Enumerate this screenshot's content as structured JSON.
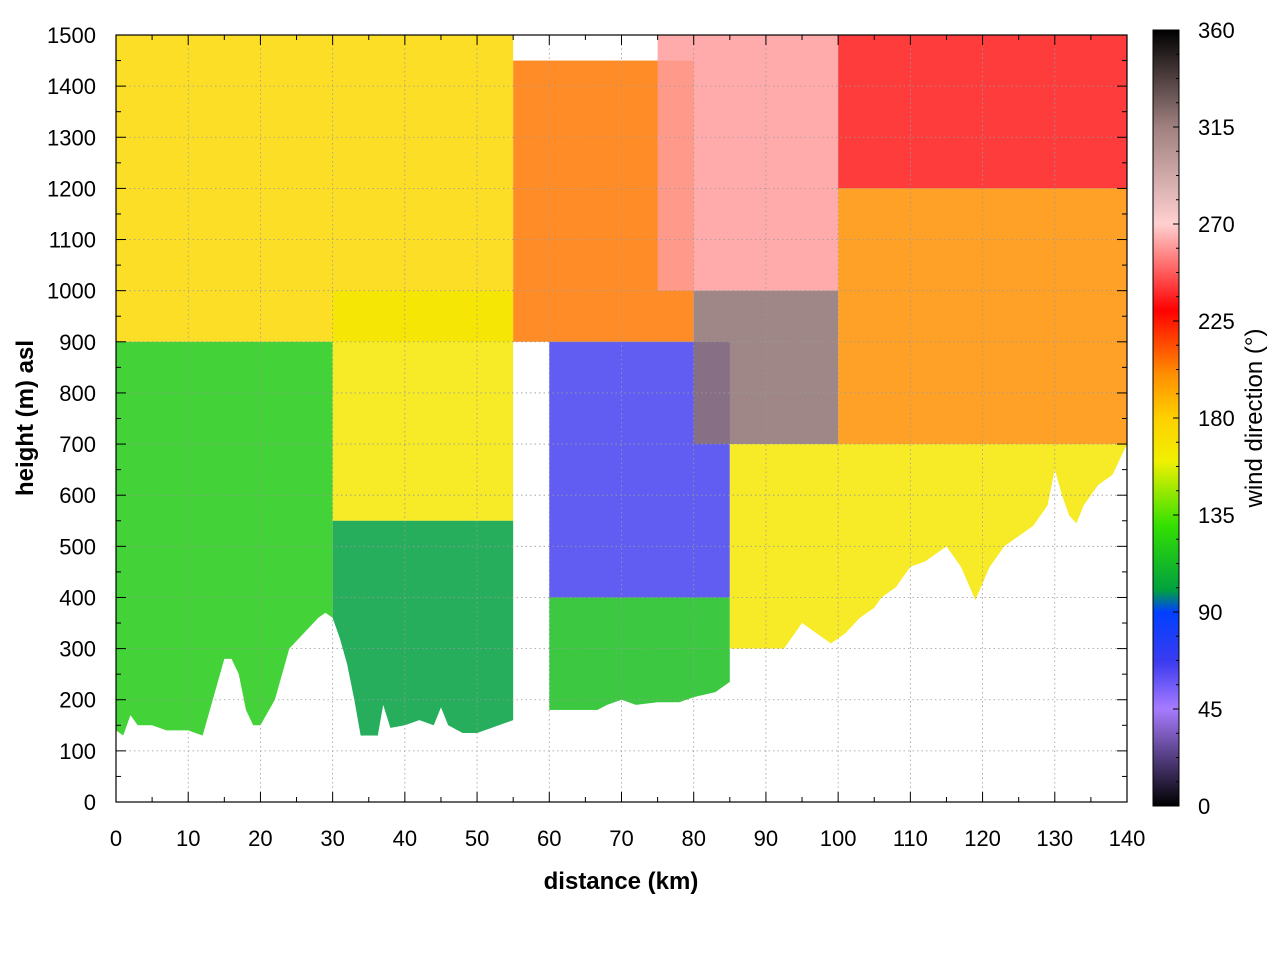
{
  "chart_data": {
    "type": "heatmap",
    "title": "",
    "xlabel": "distance (km)",
    "ylabel": "height (m) asl",
    "xlim": [
      0,
      140
    ],
    "ylim": [
      0,
      1500
    ],
    "x_ticks": [
      0,
      10,
      20,
      30,
      40,
      50,
      60,
      70,
      80,
      90,
      100,
      110,
      120,
      130,
      140
    ],
    "x_tick_labels": [
      "0",
      "10",
      "20",
      "30",
      "40",
      "50",
      "60",
      "70",
      "80",
      "90",
      "100",
      "110",
      "120",
      "130",
      "140"
    ],
    "y_ticks": [
      0,
      100,
      200,
      300,
      400,
      500,
      600,
      700,
      800,
      900,
      1000,
      1100,
      1200,
      1300,
      1400,
      1500
    ],
    "y_tick_labels": [
      "0",
      "100",
      "200",
      "300",
      "400",
      "500",
      "600",
      "700",
      "800",
      "900",
      "1000",
      "1100",
      "1200",
      "1300",
      "1400",
      "1500"
    ],
    "grid": true,
    "colorbar": {
      "label": "wind direction (°)",
      "range": [
        0,
        360
      ],
      "ticks": [
        0,
        45,
        90,
        135,
        180,
        225,
        270,
        315,
        360
      ],
      "tick_labels": [
        "0",
        "45",
        "90",
        "135",
        "180",
        "225",
        "270",
        "315",
        "360"
      ],
      "colormap_stops": [
        {
          "value": 0,
          "color": "#000000"
        },
        {
          "value": 45,
          "color": "#a77bff"
        },
        {
          "value": 67,
          "color": "#3b3bf0"
        },
        {
          "value": 90,
          "color": "#0040ff"
        },
        {
          "value": 100,
          "color": "#00a040"
        },
        {
          "value": 130,
          "color": "#33e000"
        },
        {
          "value": 160,
          "color": "#f0f000"
        },
        {
          "value": 180,
          "color": "#ffd000"
        },
        {
          "value": 200,
          "color": "#ff9000"
        },
        {
          "value": 230,
          "color": "#ff0000"
        },
        {
          "value": 270,
          "color": "#ffd0d0"
        },
        {
          "value": 315,
          "color": "#a08080"
        },
        {
          "value": 360,
          "color": "#000000"
        }
      ]
    },
    "terrain_profile": {
      "distance_km": [
        0,
        1,
        2,
        3,
        5,
        7,
        9,
        10,
        11,
        12,
        13,
        15,
        16,
        17,
        18,
        19,
        20,
        22,
        24,
        26,
        28,
        29,
        30,
        31,
        32,
        33,
        34,
        35,
        36,
        37,
        38,
        40,
        42,
        44,
        45,
        46,
        48,
        50,
        52,
        55,
        58,
        60,
        62,
        64,
        66,
        68,
        70,
        72,
        75,
        78,
        80,
        83,
        85,
        88,
        90,
        92,
        95,
        97,
        99,
        101,
        103,
        105,
        106,
        108,
        110,
        112,
        115,
        117,
        119,
        121,
        123,
        125,
        127,
        129,
        130,
        131,
        132,
        133,
        134,
        135,
        136,
        138,
        140
      ],
      "height_m": [
        140,
        130,
        170,
        150,
        150,
        140,
        140,
        140,
        135,
        130,
        180,
        280,
        280,
        250,
        180,
        150,
        150,
        200,
        300,
        330,
        360,
        370,
        360,
        320,
        270,
        200,
        120,
        95,
        110,
        190,
        145,
        150,
        160,
        150,
        185,
        150,
        135,
        135,
        145,
        160,
        175,
        180,
        170,
        165,
        175,
        190,
        200,
        190,
        195,
        195,
        205,
        215,
        235,
        240,
        260,
        290,
        350,
        330,
        310,
        330,
        360,
        380,
        400,
        420,
        460,
        470,
        500,
        460,
        395,
        460,
        500,
        520,
        540,
        580,
        650,
        600,
        560,
        545,
        580,
        600,
        620,
        640,
        700
      ]
    },
    "field_regions": [
      {
        "dist_range_km": [
          0,
          55
        ],
        "height_range_m": [
          900,
          1500
        ],
        "direction_deg": 175
      },
      {
        "dist_range_km": [
          0,
          30
        ],
        "height_range_m": [
          130,
          900
        ],
        "direction_deg": 120
      },
      {
        "dist_range_km": [
          30,
          55
        ],
        "height_range_m": [
          550,
          1000
        ],
        "direction_deg": 165
      },
      {
        "dist_range_km": [
          30,
          55
        ],
        "height_range_m": [
          130,
          550
        ],
        "direction_deg": 100
      },
      {
        "dist_range_km": [
          55,
          80
        ],
        "height_range_m": [
          900,
          1450
        ],
        "direction_deg": 205
      },
      {
        "dist_range_km": [
          60,
          85
        ],
        "height_range_m": [
          400,
          900
        ],
        "direction_deg": 65
      },
      {
        "dist_range_km": [
          60,
          85
        ],
        "height_range_m": [
          180,
          400
        ],
        "direction_deg": 115
      },
      {
        "dist_range_km": [
          75,
          100
        ],
        "height_range_m": [
          1000,
          1500
        ],
        "direction_deg": 260
      },
      {
        "dist_range_km": [
          80,
          100
        ],
        "height_range_m": [
          700,
          1000
        ],
        "direction_deg": 320
      },
      {
        "dist_range_km": [
          85,
          140
        ],
        "height_range_m": [
          300,
          700
        ],
        "direction_deg": 165
      },
      {
        "dist_range_km": [
          100,
          140
        ],
        "height_range_m": [
          1200,
          1500
        ],
        "direction_deg": 235
      },
      {
        "dist_range_km": [
          100,
          140
        ],
        "height_range_m": [
          700,
          1200
        ],
        "direction_deg": 200
      }
    ]
  }
}
